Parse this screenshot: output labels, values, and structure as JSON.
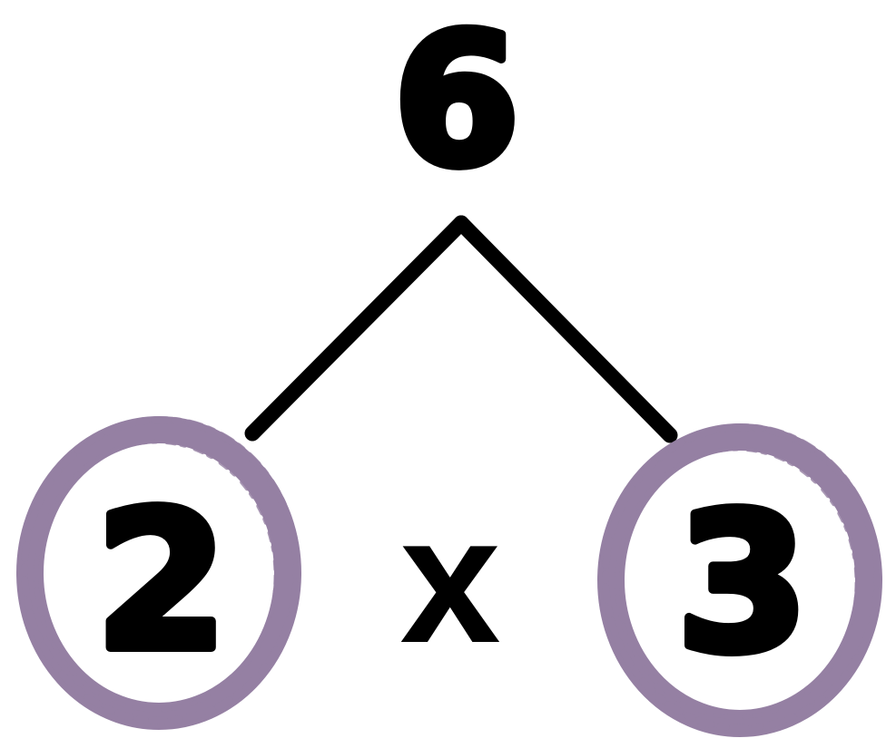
{
  "tree": {
    "root": "6",
    "left_factor": "2",
    "operator": "x",
    "right_factor": "3"
  },
  "colors": {
    "ink": "#000000",
    "circle": "#9580a3",
    "background": "#ffffff"
  }
}
